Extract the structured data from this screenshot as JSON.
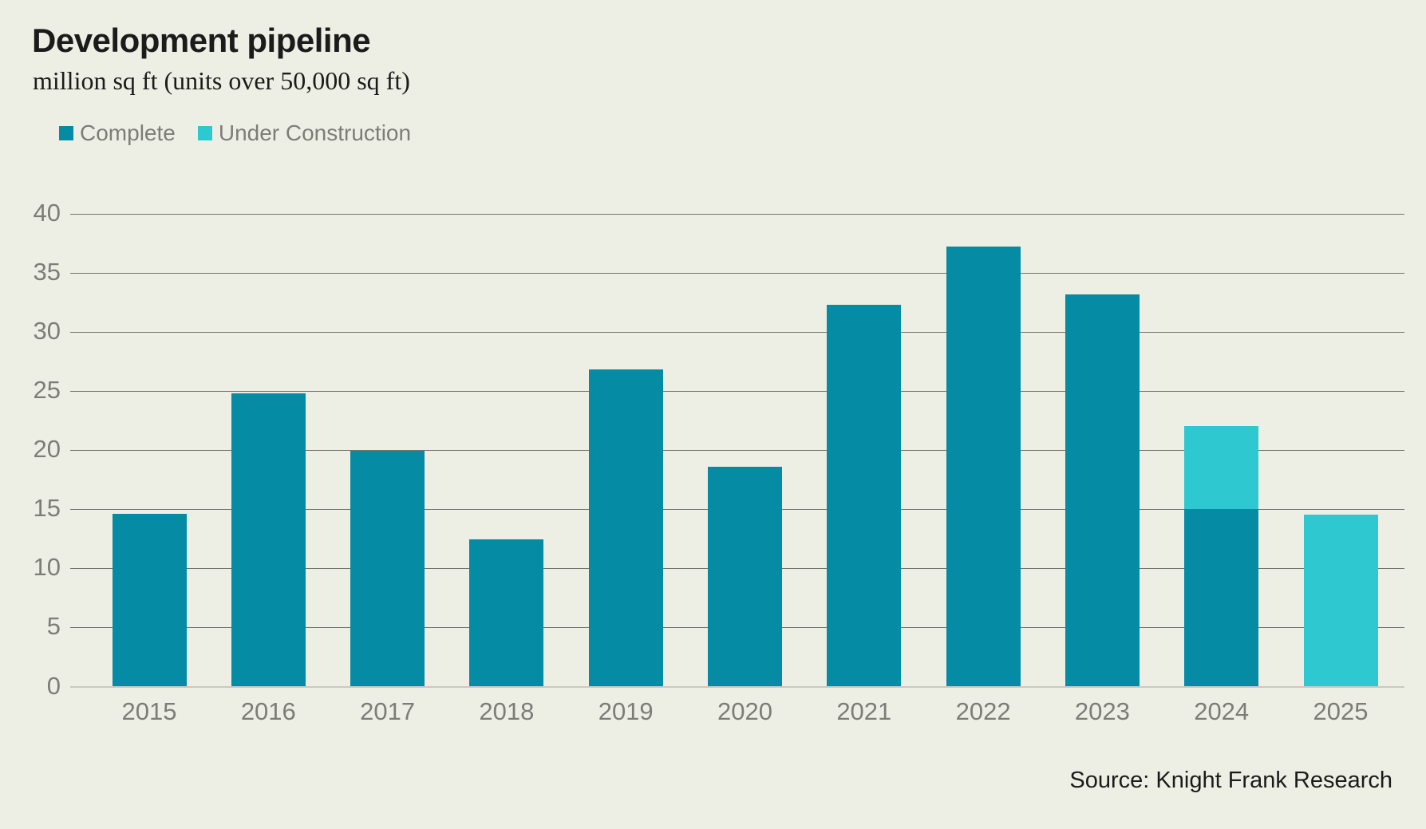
{
  "title": "Development pipeline",
  "subtitle": "million sq ft (units over 50,000 sq ft)",
  "legend": [
    {
      "label": "Complete",
      "color": "#058BA4"
    },
    {
      "label": "Under Construction",
      "color": "#2EC8D1"
    }
  ],
  "source": "Source: Knight Frank Research",
  "colors": {
    "background": "#EEEFE4",
    "complete": "#058BA4",
    "under_construction": "#2EC8D1",
    "gridline": "#74746E",
    "zero_line": "#C9C9C1",
    "text_dark": "#1B1B1B",
    "text_gray": "#7D7D78"
  },
  "chart_data": {
    "type": "bar",
    "stacked": true,
    "title": "Development pipeline",
    "subtitle": "million sq ft (units over 50,000 sq ft)",
    "xlabel": "",
    "ylabel": "million sq ft",
    "categories": [
      "2015",
      "2016",
      "2017",
      "2018",
      "2019",
      "2020",
      "2021",
      "2022",
      "2023",
      "2024",
      "2025"
    ],
    "series": [
      {
        "name": "Complete",
        "color_key": "complete",
        "values": [
          14.6,
          24.8,
          19.9,
          12.4,
          26.8,
          18.6,
          32.3,
          37.2,
          33.2,
          15.0,
          0
        ]
      },
      {
        "name": "Under Construction",
        "color_key": "under_construction",
        "values": [
          0,
          0,
          0,
          0,
          0,
          0,
          0,
          0,
          0,
          7.0,
          14.5
        ]
      }
    ],
    "ylim": [
      0,
      40
    ],
    "yticks": [
      0,
      5,
      10,
      15,
      20,
      25,
      30,
      35,
      40
    ],
    "grid": true,
    "legend_position": "top-left"
  }
}
